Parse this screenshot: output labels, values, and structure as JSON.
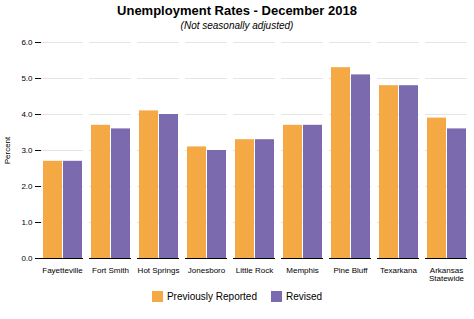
{
  "chart_data": {
    "type": "bar",
    "title": "Unemployment Rates - December 2018",
    "subtitle": "(Not seasonally adjusted)",
    "ylabel": "Percent",
    "categories": [
      "Fayetteville",
      "Fort Smith",
      "Hot Springs",
      "Jonesboro",
      "Little Rock",
      "Memphis",
      "Pine Bluff",
      "Texarkana",
      "Arkansas\nStatewide"
    ],
    "series": [
      {
        "name": "Previously Reported",
        "color": "#F5A945",
        "values": [
          2.7,
          3.7,
          4.1,
          3.1,
          3.3,
          3.7,
          5.3,
          4.8,
          3.9
        ]
      },
      {
        "name": "Revised",
        "color": "#7B6BAE",
        "values": [
          2.7,
          3.6,
          4.0,
          3.0,
          3.3,
          3.7,
          5.1,
          4.8,
          3.6
        ]
      }
    ],
    "ylim": [
      0,
      6
    ],
    "yticks": [
      0,
      1,
      2,
      3,
      4,
      5,
      6
    ],
    "grid": true,
    "legend": "bottom"
  }
}
